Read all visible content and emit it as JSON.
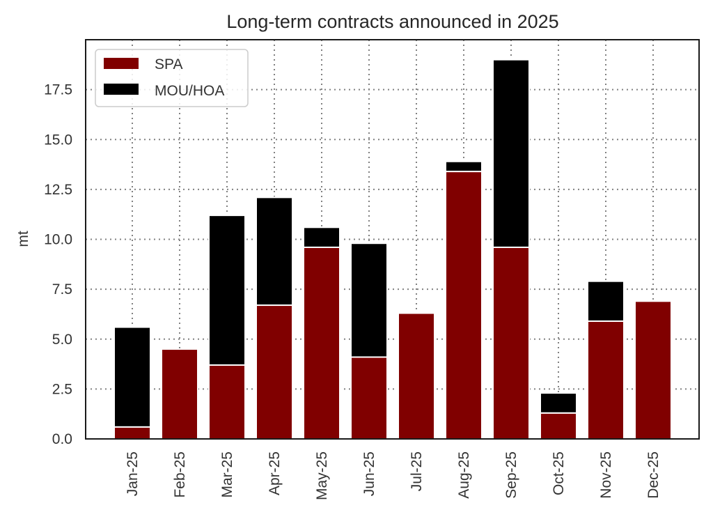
{
  "chart_data": {
    "type": "bar",
    "stacked": true,
    "title": "Long-term contracts announced in 2025",
    "xlabel": "",
    "ylabel": "mt",
    "ylim": [
      0,
      20
    ],
    "yticks": [
      0.0,
      2.5,
      5.0,
      7.5,
      10.0,
      12.5,
      15.0,
      17.5
    ],
    "ytick_labels": [
      "0.0",
      "2.5",
      "5.0",
      "7.5",
      "10.0",
      "12.5",
      "15.0",
      "17.5"
    ],
    "grid": true,
    "legend_position": "upper left",
    "categories": [
      "Jan-25",
      "Feb-25",
      "Mar-25",
      "Apr-25",
      "May-25",
      "Jun-25",
      "Jul-25",
      "Aug-25",
      "Sep-25",
      "Oct-25",
      "Nov-25",
      "Dec-25"
    ],
    "series": [
      {
        "name": "SPA",
        "color": "#800000",
        "values": [
          0.6,
          4.5,
          3.7,
          6.7,
          9.6,
          4.1,
          6.3,
          13.4,
          9.6,
          1.3,
          5.9,
          6.9
        ]
      },
      {
        "name": "MOU/HOA",
        "color": "#000000",
        "values": [
          5.0,
          0.0,
          7.5,
          5.4,
          1.0,
          5.7,
          0.0,
          0.5,
          9.4,
          1.0,
          2.0,
          0.0
        ]
      }
    ]
  }
}
